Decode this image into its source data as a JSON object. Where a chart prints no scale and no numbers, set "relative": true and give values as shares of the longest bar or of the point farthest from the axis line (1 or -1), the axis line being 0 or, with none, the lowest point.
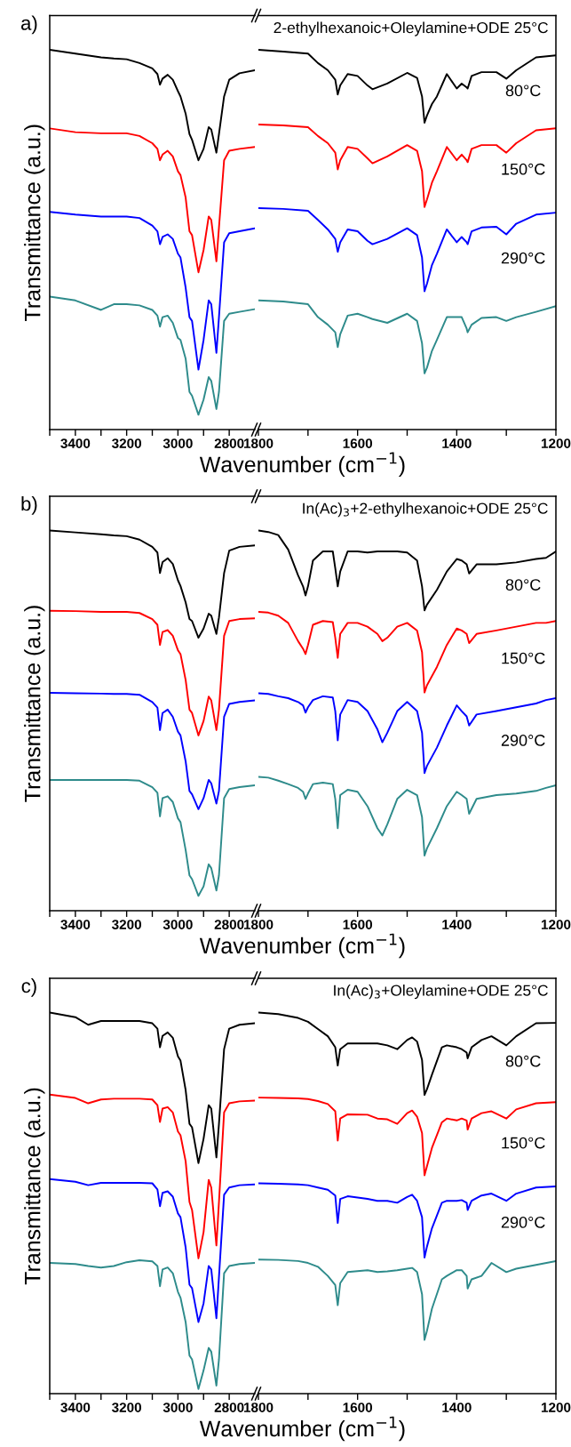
{
  "chart_data": [
    {
      "type": "line",
      "relative": true,
      "ylabel": "Transmittance (a.u.)",
      "annotations": [
        "a)"
      ],
      "xlim": [
        3500,
        2700
      ],
      "xticks": [
        {
          "value": 3500,
          "label": null
        },
        3400,
        {
          "value": 3300,
          "label": null
        },
        3200,
        {
          "value": 3100,
          "label": null
        },
        3000,
        {
          "value": 2900,
          "label": null
        },
        2800
      ],
      "x": [
        3500,
        3400,
        3300,
        3250,
        3200,
        3150,
        3100,
        3080,
        3070,
        3060,
        3040,
        3020,
        3000,
        2990,
        2970,
        2955,
        2945,
        2920,
        2900,
        2880,
        2870,
        2850,
        2840,
        2820,
        2800,
        2760,
        2700
      ],
      "series": [
        {
          "color": "#000000",
          "values": [
            1.0,
            0.99,
            0.98,
            0.977,
            0.975,
            0.965,
            0.951,
            0.936,
            0.908,
            0.924,
            0.934,
            0.921,
            0.891,
            0.877,
            0.832,
            0.778,
            0.763,
            0.709,
            0.739,
            0.796,
            0.79,
            0.729,
            0.778,
            0.877,
            0.921,
            0.938,
            0.946
          ]
        },
        {
          "color": "#ff0000",
          "values": [
            0.793,
            0.783,
            0.78,
            0.78,
            0.78,
            0.773,
            0.754,
            0.739,
            0.709,
            0.724,
            0.734,
            0.719,
            0.68,
            0.67,
            0.611,
            0.522,
            0.512,
            0.414,
            0.473,
            0.561,
            0.552,
            0.443,
            0.532,
            0.709,
            0.734,
            0.739,
            0.744
          ]
        },
        {
          "color": "#0000ff",
          "values": [
            0.573,
            0.566,
            0.561,
            0.561,
            0.561,
            0.557,
            0.537,
            0.522,
            0.488,
            0.507,
            0.514,
            0.502,
            0.463,
            0.453,
            0.374,
            0.296,
            0.286,
            0.158,
            0.236,
            0.34,
            0.33,
            0.202,
            0.296,
            0.493,
            0.517,
            0.522,
            0.53
          ]
        },
        {
          "color": "#2e8b8b",
          "values": [
            0.35,
            0.34,
            0.315,
            0.33,
            0.33,
            0.327,
            0.315,
            0.3,
            0.271,
            0.296,
            0.3,
            0.281,
            0.241,
            0.236,
            0.187,
            0.099,
            0.089,
            0.039,
            0.079,
            0.138,
            0.128,
            0.054,
            0.099,
            0.286,
            0.305,
            0.31,
            0.317
          ]
        }
      ]
    },
    {
      "type": "line",
      "relative": true,
      "title": "2-ethylhexanoic+Oleylamine+ODE 25°C",
      "xlabel": "Wavenumber (cm$^{−1}$)",
      "xlim": [
        1800,
        1200
      ],
      "xticks": [
        1800,
        {
          "value": 1700,
          "label": null
        },
        1600,
        {
          "value": 1500,
          "label": null
        },
        1400,
        {
          "value": 1300,
          "label": null
        },
        1200
      ],
      "annotations": [
        "80°C",
        "150°C",
        "290°C"
      ],
      "x": [
        1800,
        1750,
        1700,
        1680,
        1660,
        1645,
        1640,
        1635,
        1620,
        1600,
        1580,
        1570,
        1540,
        1500,
        1480,
        1470,
        1465,
        1460,
        1450,
        1440,
        1420,
        1400,
        1390,
        1380,
        1378,
        1370,
        1350,
        1320,
        1300,
        1280,
        1240,
        1200
      ],
      "series": [
        {
          "color": "#000000",
          "values": [
            1.0,
            0.995,
            0.99,
            0.965,
            0.946,
            0.921,
            0.882,
            0.906,
            0.936,
            0.931,
            0.906,
            0.896,
            0.911,
            0.939,
            0.926,
            0.877,
            0.808,
            0.827,
            0.857,
            0.877,
            0.936,
            0.898,
            0.911,
            0.901,
            0.898,
            0.931,
            0.941,
            0.941,
            0.924,
            0.946,
            0.98,
            0.985
          ]
        },
        {
          "color": "#ff0000",
          "values": [
            0.803,
            0.801,
            0.796,
            0.773,
            0.754,
            0.729,
            0.685,
            0.709,
            0.744,
            0.739,
            0.714,
            0.701,
            0.719,
            0.749,
            0.734,
            0.68,
            0.586,
            0.606,
            0.65,
            0.68,
            0.744,
            0.709,
            0.724,
            0.709,
            0.704,
            0.739,
            0.749,
            0.749,
            0.729,
            0.754,
            0.788,
            0.793
          ]
        },
        {
          "color": "#0000ff",
          "values": [
            0.583,
            0.581,
            0.576,
            0.552,
            0.527,
            0.502,
            0.468,
            0.493,
            0.527,
            0.522,
            0.497,
            0.488,
            0.502,
            0.53,
            0.512,
            0.453,
            0.364,
            0.384,
            0.433,
            0.463,
            0.527,
            0.493,
            0.507,
            0.493,
            0.488,
            0.522,
            0.532,
            0.534,
            0.514,
            0.542,
            0.566,
            0.571
          ]
        },
        {
          "color": "#2e8b8b",
          "values": [
            0.34,
            0.337,
            0.33,
            0.296,
            0.276,
            0.256,
            0.217,
            0.251,
            0.3,
            0.305,
            0.296,
            0.291,
            0.281,
            0.305,
            0.286,
            0.227,
            0.148,
            0.163,
            0.207,
            0.236,
            0.296,
            0.296,
            0.296,
            0.266,
            0.256,
            0.276,
            0.294,
            0.296,
            0.286,
            0.296,
            0.31,
            0.325
          ]
        }
      ]
    },
    {
      "type": "line",
      "relative": true,
      "ylabel": "Transmittance (a.u.)",
      "annotations": [
        "b)"
      ],
      "xlim": [
        3500,
        2700
      ],
      "xticks": [
        {
          "value": 3500,
          "label": null
        },
        3400,
        {
          "value": 3300,
          "label": null
        },
        3200,
        {
          "value": 3100,
          "label": null
        },
        3000,
        {
          "value": 2900,
          "label": null
        },
        2800
      ],
      "x": [
        3500,
        3400,
        3300,
        3250,
        3200,
        3150,
        3100,
        3080,
        3070,
        3060,
        3040,
        3020,
        3000,
        2990,
        2970,
        2955,
        2945,
        2920,
        2900,
        2880,
        2870,
        2850,
        2840,
        2820,
        2800,
        2760,
        2700
      ],
      "series": [
        {
          "color": "#000000",
          "values": [
            1.0,
            0.995,
            0.99,
            0.987,
            0.985,
            0.976,
            0.957,
            0.942,
            0.888,
            0.917,
            0.927,
            0.912,
            0.869,
            0.854,
            0.811,
            0.767,
            0.762,
            0.718,
            0.742,
            0.781,
            0.776,
            0.728,
            0.771,
            0.888,
            0.947,
            0.957,
            0.961
          ]
        },
        {
          "color": "#ff0000",
          "values": [
            0.789,
            0.788,
            0.786,
            0.786,
            0.786,
            0.783,
            0.767,
            0.752,
            0.699,
            0.733,
            0.738,
            0.723,
            0.685,
            0.675,
            0.607,
            0.529,
            0.52,
            0.461,
            0.499,
            0.563,
            0.553,
            0.475,
            0.529,
            0.723,
            0.762,
            0.767,
            0.769
          ]
        },
        {
          "color": "#0000ff",
          "values": [
            0.573,
            0.572,
            0.571,
            0.57,
            0.57,
            0.568,
            0.549,
            0.534,
            0.475,
            0.52,
            0.529,
            0.51,
            0.471,
            0.461,
            0.393,
            0.315,
            0.306,
            0.267,
            0.296,
            0.344,
            0.335,
            0.282,
            0.315,
            0.51,
            0.544,
            0.549,
            0.553
          ]
        },
        {
          "color": "#2e8b8b",
          "values": [
            0.344,
            0.344,
            0.344,
            0.344,
            0.344,
            0.342,
            0.325,
            0.31,
            0.248,
            0.296,
            0.301,
            0.286,
            0.243,
            0.233,
            0.16,
            0.093,
            0.083,
            0.039,
            0.064,
            0.122,
            0.112,
            0.053,
            0.093,
            0.296,
            0.32,
            0.325,
            0.33
          ]
        }
      ]
    },
    {
      "type": "line",
      "relative": true,
      "title": "In(Ac)$_{3}$+2-ethylhexanoic+ODE 25°C",
      "xlabel": "Wavenumber (cm$^{−1}$)",
      "xlim": [
        1800,
        1200
      ],
      "xticks": [
        1800,
        {
          "value": 1700,
          "label": null
        },
        1600,
        {
          "value": 1500,
          "label": null
        },
        1400,
        {
          "value": 1300,
          "label": null
        },
        1200
      ],
      "annotations": [
        "80°C",
        "150°C",
        "290°C"
      ],
      "x": [
        1800,
        1780,
        1760,
        1740,
        1720,
        1710,
        1705,
        1700,
        1690,
        1670,
        1650,
        1645,
        1640,
        1635,
        1620,
        1600,
        1580,
        1560,
        1550,
        1540,
        1520,
        1500,
        1480,
        1470,
        1465,
        1460,
        1440,
        1420,
        1400,
        1390,
        1380,
        1375,
        1360,
        1320,
        1280,
        1240,
        1220,
        1200
      ],
      "series": [
        {
          "color": "#000000",
          "values": [
            1.0,
            0.996,
            0.988,
            0.95,
            0.882,
            0.853,
            0.829,
            0.853,
            0.921,
            0.945,
            0.945,
            0.901,
            0.853,
            0.892,
            0.945,
            0.945,
            0.942,
            0.945,
            0.945,
            0.945,
            0.945,
            0.942,
            0.921,
            0.853,
            0.79,
            0.805,
            0.844,
            0.892,
            0.925,
            0.921,
            0.911,
            0.887,
            0.911,
            0.911,
            0.916,
            0.925,
            0.928,
            0.945
          ]
        },
        {
          "color": "#ff0000",
          "values": [
            0.786,
            0.784,
            0.776,
            0.757,
            0.709,
            0.689,
            0.675,
            0.699,
            0.752,
            0.762,
            0.759,
            0.718,
            0.665,
            0.728,
            0.757,
            0.757,
            0.747,
            0.728,
            0.709,
            0.718,
            0.747,
            0.757,
            0.737,
            0.68,
            0.574,
            0.593,
            0.641,
            0.699,
            0.742,
            0.737,
            0.728,
            0.704,
            0.728,
            0.737,
            0.747,
            0.757,
            0.757,
            0.762
          ]
        },
        {
          "color": "#0000ff",
          "values": [
            0.572,
            0.57,
            0.564,
            0.559,
            0.549,
            0.54,
            0.521,
            0.535,
            0.554,
            0.564,
            0.561,
            0.525,
            0.448,
            0.516,
            0.554,
            0.549,
            0.525,
            0.477,
            0.443,
            0.468,
            0.525,
            0.549,
            0.525,
            0.468,
            0.362,
            0.381,
            0.429,
            0.487,
            0.54,
            0.525,
            0.511,
            0.487,
            0.516,
            0.525,
            0.535,
            0.545,
            0.554,
            0.559
          ]
        },
        {
          "color": "#2e8b8b",
          "values": [
            0.352,
            0.35,
            0.342,
            0.333,
            0.323,
            0.313,
            0.294,
            0.308,
            0.333,
            0.337,
            0.333,
            0.294,
            0.217,
            0.304,
            0.318,
            0.313,
            0.275,
            0.217,
            0.198,
            0.227,
            0.294,
            0.318,
            0.304,
            0.246,
            0.145,
            0.164,
            0.217,
            0.275,
            0.313,
            0.304,
            0.294,
            0.255,
            0.294,
            0.304,
            0.308,
            0.315,
            0.323,
            0.33
          ]
        }
      ]
    },
    {
      "type": "line",
      "relative": true,
      "ylabel": "Transmittance (a.u.)",
      "annotations": [
        "c)"
      ],
      "xlim": [
        3500,
        2700
      ],
      "xticks": [
        {
          "value": 3500,
          "label": null
        },
        3400,
        {
          "value": 3300,
          "label": null
        },
        3200,
        {
          "value": 3100,
          "label": null
        },
        3000,
        {
          "value": 2900,
          "label": null
        },
        2800
      ],
      "x": [
        3500,
        3400,
        3350,
        3300,
        3250,
        3200,
        3150,
        3100,
        3080,
        3070,
        3060,
        3040,
        3020,
        3000,
        2990,
        2970,
        2955,
        2945,
        2920,
        2900,
        2880,
        2870,
        2850,
        2840,
        2820,
        2800,
        2760,
        2700
      ],
      "series": [
        {
          "color": "#000000",
          "values": [
            1.0,
            0.988,
            0.968,
            0.978,
            0.978,
            0.978,
            0.978,
            0.972,
            0.958,
            0.909,
            0.939,
            0.948,
            0.934,
            0.885,
            0.874,
            0.797,
            0.708,
            0.699,
            0.605,
            0.669,
            0.757,
            0.748,
            0.62,
            0.708,
            0.904,
            0.958,
            0.968,
            0.972
          ]
        },
        {
          "color": "#ff0000",
          "values": [
            0.785,
            0.776,
            0.762,
            0.772,
            0.774,
            0.774,
            0.774,
            0.772,
            0.757,
            0.713,
            0.748,
            0.752,
            0.738,
            0.688,
            0.678,
            0.61,
            0.503,
            0.482,
            0.355,
            0.424,
            0.561,
            0.541,
            0.389,
            0.503,
            0.738,
            0.762,
            0.767,
            0.769
          ]
        },
        {
          "color": "#0000ff",
          "values": [
            0.563,
            0.556,
            0.547,
            0.553,
            0.553,
            0.553,
            0.553,
            0.552,
            0.536,
            0.492,
            0.527,
            0.531,
            0.517,
            0.473,
            0.463,
            0.384,
            0.286,
            0.277,
            0.188,
            0.237,
            0.335,
            0.326,
            0.198,
            0.306,
            0.522,
            0.541,
            0.547,
            0.549
          ]
        },
        {
          "color": "#2e8b8b",
          "values": [
            0.343,
            0.34,
            0.335,
            0.331,
            0.335,
            0.345,
            0.35,
            0.347,
            0.335,
            0.282,
            0.326,
            0.331,
            0.316,
            0.267,
            0.252,
            0.188,
            0.1,
            0.09,
            0.012,
            0.061,
            0.12,
            0.11,
            0.021,
            0.09,
            0.316,
            0.335,
            0.34,
            0.343
          ]
        }
      ]
    },
    {
      "type": "line",
      "relative": true,
      "title": "In(Ac)$_{3}$+Oleylamine+ODE 25°C",
      "xlabel": "Wavenumber (cm$^{−1}$)",
      "xlim": [
        1800,
        1200
      ],
      "xticks": [
        1800,
        {
          "value": 1700,
          "label": null
        },
        1600,
        {
          "value": 1500,
          "label": null
        },
        1400,
        {
          "value": 1300,
          "label": null
        },
        1200
      ],
      "annotations": [
        "80°C",
        "150°C",
        "290°C"
      ],
      "x": [
        1800,
        1760,
        1720,
        1700,
        1680,
        1660,
        1645,
        1640,
        1635,
        1620,
        1580,
        1560,
        1540,
        1520,
        1500,
        1490,
        1480,
        1470,
        1465,
        1460,
        1450,
        1430,
        1420,
        1400,
        1390,
        1380,
        1378,
        1370,
        1350,
        1330,
        1300,
        1280,
        1240,
        1200
      ],
      "series": [
        {
          "color": "#000000",
          "values": [
            1.0,
            0.996,
            0.986,
            0.976,
            0.957,
            0.938,
            0.909,
            0.861,
            0.904,
            0.919,
            0.919,
            0.919,
            0.914,
            0.904,
            0.928,
            0.935,
            0.924,
            0.876,
            0.784,
            0.799,
            0.837,
            0.909,
            0.914,
            0.909,
            0.904,
            0.895,
            0.88,
            0.909,
            0.928,
            0.938,
            0.914,
            0.938,
            0.972,
            0.973
          ]
        },
        {
          "color": "#ff0000",
          "values": [
            0.777,
            0.776,
            0.775,
            0.773,
            0.768,
            0.76,
            0.741,
            0.664,
            0.722,
            0.733,
            0.732,
            0.722,
            0.72,
            0.708,
            0.736,
            0.743,
            0.727,
            0.684,
            0.573,
            0.597,
            0.645,
            0.712,
            0.722,
            0.717,
            0.722,
            0.717,
            0.693,
            0.722,
            0.736,
            0.741,
            0.722,
            0.746,
            0.762,
            0.765
          ]
        },
        {
          "color": "#0000ff",
          "values": [
            0.552,
            0.551,
            0.549,
            0.547,
            0.541,
            0.535,
            0.52,
            0.448,
            0.511,
            0.518,
            0.511,
            0.506,
            0.506,
            0.501,
            0.516,
            0.522,
            0.506,
            0.463,
            0.357,
            0.386,
            0.434,
            0.501,
            0.506,
            0.506,
            0.508,
            0.501,
            0.482,
            0.506,
            0.52,
            0.525,
            0.506,
            0.525,
            0.541,
            0.544
          ]
        },
        {
          "color": "#2e8b8b",
          "values": [
            0.352,
            0.351,
            0.348,
            0.343,
            0.333,
            0.309,
            0.285,
            0.232,
            0.29,
            0.319,
            0.324,
            0.319,
            0.321,
            0.324,
            0.328,
            0.33,
            0.319,
            0.261,
            0.141,
            0.165,
            0.223,
            0.3,
            0.309,
            0.324,
            0.324,
            0.309,
            0.276,
            0.3,
            0.309,
            0.343,
            0.319,
            0.328,
            0.338,
            0.348
          ]
        }
      ]
    }
  ]
}
